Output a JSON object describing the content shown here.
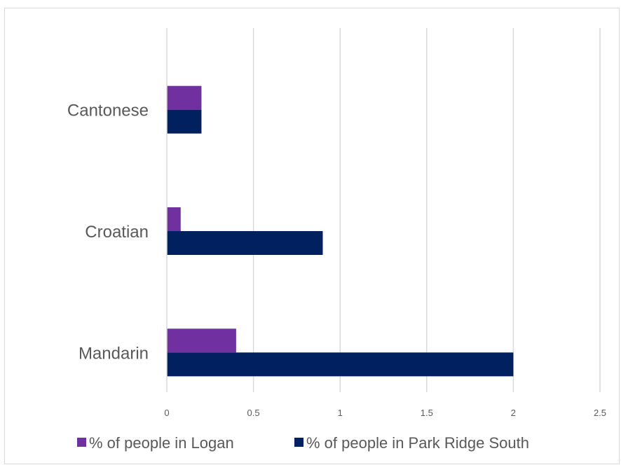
{
  "chart_data": {
    "type": "bar",
    "orientation": "horizontal",
    "categories": [
      "Cantonese",
      "Croatian",
      "Mandarin"
    ],
    "series": [
      {
        "name": "% of people in Logan",
        "values": [
          0.2,
          0.08,
          0.4
        ],
        "color": "#7030a0"
      },
      {
        "name": "% of people in Park Ridge South",
        "values": [
          0.2,
          0.9,
          2.0
        ],
        "color": "#002060"
      }
    ],
    "xlim": [
      0,
      2.5
    ],
    "xticks": [
      "0",
      "0.5",
      "1",
      "1.5",
      "2",
      "2.5"
    ],
    "grid": "vertical",
    "legend_position": "bottom",
    "title": "",
    "xlabel": "",
    "ylabel": ""
  }
}
